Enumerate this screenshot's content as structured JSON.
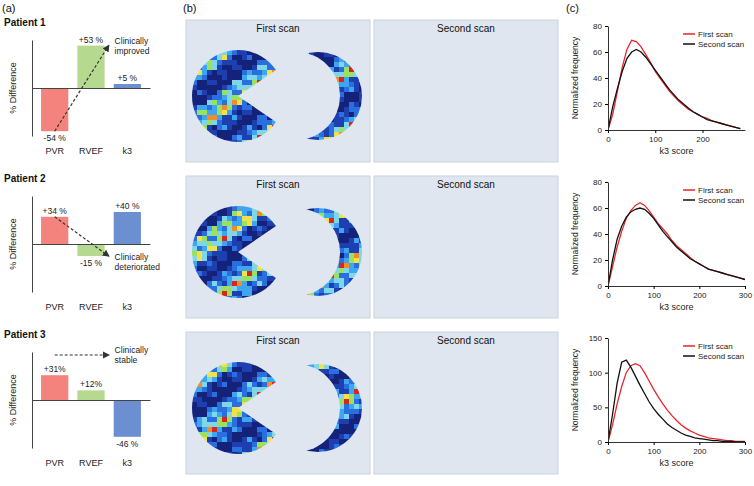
{
  "panels": [
    "(a)",
    "(b)",
    "(c)"
  ],
  "chart_data": [
    {
      "type": "bar",
      "title": "Patient 1",
      "ylabel": "% Difference",
      "categories": [
        "PVR",
        "RVEF",
        "k3"
      ],
      "values": [
        -54,
        53,
        5
      ],
      "value_labels": [
        "-54 %",
        "+53 %",
        "+5 %"
      ],
      "colors": [
        "#f4837d",
        "#b5d98f",
        "#6b8fd0"
      ],
      "ylim": [
        -60,
        60
      ],
      "data_labels": true,
      "tick_labels": "x",
      "annotation": "Clinically improved"
    },
    {
      "type": "bar",
      "title": "Patient 2",
      "ylabel": "% Difference",
      "categories": [
        "PVR",
        "RVEF",
        "k3"
      ],
      "values": [
        34,
        -15,
        40
      ],
      "value_labels": [
        "+34 %",
        "-15 %",
        "+40 %"
      ],
      "colors": [
        "#f4837d",
        "#b5d98f",
        "#6b8fd0"
      ],
      "ylim": [
        -60,
        60
      ],
      "data_labels": true,
      "tick_labels": "x",
      "annotation": "Clinically deteriorated"
    },
    {
      "type": "bar",
      "title": "Patient 3",
      "ylabel": "% Difference",
      "categories": [
        "PVR",
        "RVEF",
        "k3"
      ],
      "values": [
        31,
        12,
        -46
      ],
      "value_labels": [
        "+31%",
        "+12%",
        "-46 %"
      ],
      "colors": [
        "#f4837d",
        "#b5d98f",
        "#6b8fd0"
      ],
      "ylim": [
        -60,
        60
      ],
      "data_labels": true,
      "tick_labels": "x",
      "annotation": "Clinically stable"
    },
    {
      "type": "image",
      "labels": [
        "First scan",
        "Second scan"
      ]
    },
    {
      "type": "image",
      "labels": [
        "First scan",
        "Second scan"
      ]
    },
    {
      "type": "image",
      "labels": [
        "First scan",
        "Second scan"
      ]
    },
    {
      "type": "line",
      "xlabel": "k3 score",
      "ylabel": "Normalized frequency",
      "legend": "top-right",
      "x": [
        0,
        10,
        20,
        30,
        40,
        50,
        60,
        70,
        80,
        90,
        100,
        110,
        120,
        130,
        140,
        150,
        160,
        170,
        180,
        190,
        200,
        210,
        220,
        230,
        240,
        250,
        260,
        270,
        280
      ],
      "xlim": [
        0,
        290
      ],
      "xticks": [
        0,
        100,
        200
      ],
      "ylim": [
        0,
        80
      ],
      "yticks": [
        0,
        20,
        40,
        60,
        80
      ],
      "series": [
        {
          "name": "First scan",
          "color": "#e8262b",
          "values": [
            0,
            12,
            30,
            48,
            62,
            69,
            68,
            64,
            58,
            52,
            45,
            40,
            35,
            30,
            26,
            22,
            19,
            16,
            14,
            12,
            10,
            9,
            7,
            6,
            5,
            4,
            3,
            2,
            1
          ]
        },
        {
          "name": "Second scan",
          "color": "#111111",
          "values": [
            0,
            18,
            32,
            45,
            55,
            60,
            62,
            60,
            56,
            51,
            46,
            41,
            36,
            31,
            27,
            23,
            20,
            17,
            14,
            12,
            10,
            8,
            7,
            6,
            5,
            4,
            3,
            2,
            1
          ]
        }
      ]
    },
    {
      "type": "line",
      "xlabel": "k3 score",
      "ylabel": "Normalized frequency",
      "legend": "top-right",
      "x": [
        0,
        10,
        20,
        30,
        40,
        50,
        60,
        70,
        80,
        90,
        100,
        110,
        120,
        130,
        140,
        150,
        160,
        170,
        180,
        190,
        200,
        210,
        220,
        230,
        240,
        250,
        260,
        270,
        280,
        290,
        300
      ],
      "xlim": [
        0,
        300
      ],
      "xticks": [
        0,
        100,
        200,
        300
      ],
      "ylim": [
        0,
        80
      ],
      "yticks": [
        0,
        20,
        40,
        60,
        80
      ],
      "series": [
        {
          "name": "First scan",
          "color": "#e8262b",
          "values": [
            0,
            15,
            30,
            42,
            52,
            58,
            62,
            64,
            62,
            58,
            53,
            48,
            44,
            40,
            35,
            31,
            28,
            25,
            22,
            19,
            17,
            15,
            13,
            12,
            11,
            10,
            9,
            8,
            7,
            6,
            5
          ]
        },
        {
          "name": "Second scan",
          "color": "#111111",
          "values": [
            0,
            20,
            36,
            46,
            53,
            57,
            59,
            60,
            59,
            56,
            52,
            47,
            42,
            38,
            34,
            30,
            27,
            24,
            21,
            19,
            17,
            15,
            13,
            12,
            11,
            10,
            9,
            8,
            7,
            6,
            5
          ]
        }
      ]
    },
    {
      "type": "line",
      "xlabel": "k3 score",
      "ylabel": "Normalized frequency",
      "legend": "top-right",
      "x": [
        0,
        10,
        20,
        30,
        40,
        50,
        60,
        70,
        80,
        90,
        100,
        110,
        120,
        130,
        140,
        150,
        160,
        170,
        180,
        190,
        200,
        210,
        220,
        230,
        240,
        250,
        260,
        270,
        280,
        290,
        300
      ],
      "xlim": [
        0,
        300
      ],
      "xticks": [
        0,
        100,
        200,
        300
      ],
      "ylim": [
        0,
        150
      ],
      "yticks": [
        0,
        50,
        100,
        150
      ],
      "series": [
        {
          "name": "First scan",
          "color": "#e8262b",
          "values": [
            0,
            25,
            55,
            80,
            100,
            110,
            113,
            110,
            100,
            88,
            76,
            65,
            55,
            46,
            38,
            31,
            25,
            20,
            16,
            13,
            10,
            8,
            6,
            5,
            4,
            3,
            2,
            2,
            1,
            1,
            1
          ]
        },
        {
          "name": "Second scan",
          "color": "#111111",
          "values": [
            0,
            40,
            85,
            115,
            118,
            108,
            95,
            82,
            70,
            58,
            48,
            40,
            33,
            26,
            21,
            17,
            13,
            10,
            8,
            6,
            5,
            4,
            3,
            2,
            2,
            1,
            1,
            1,
            0,
            0,
            0
          ]
        }
      ]
    }
  ]
}
